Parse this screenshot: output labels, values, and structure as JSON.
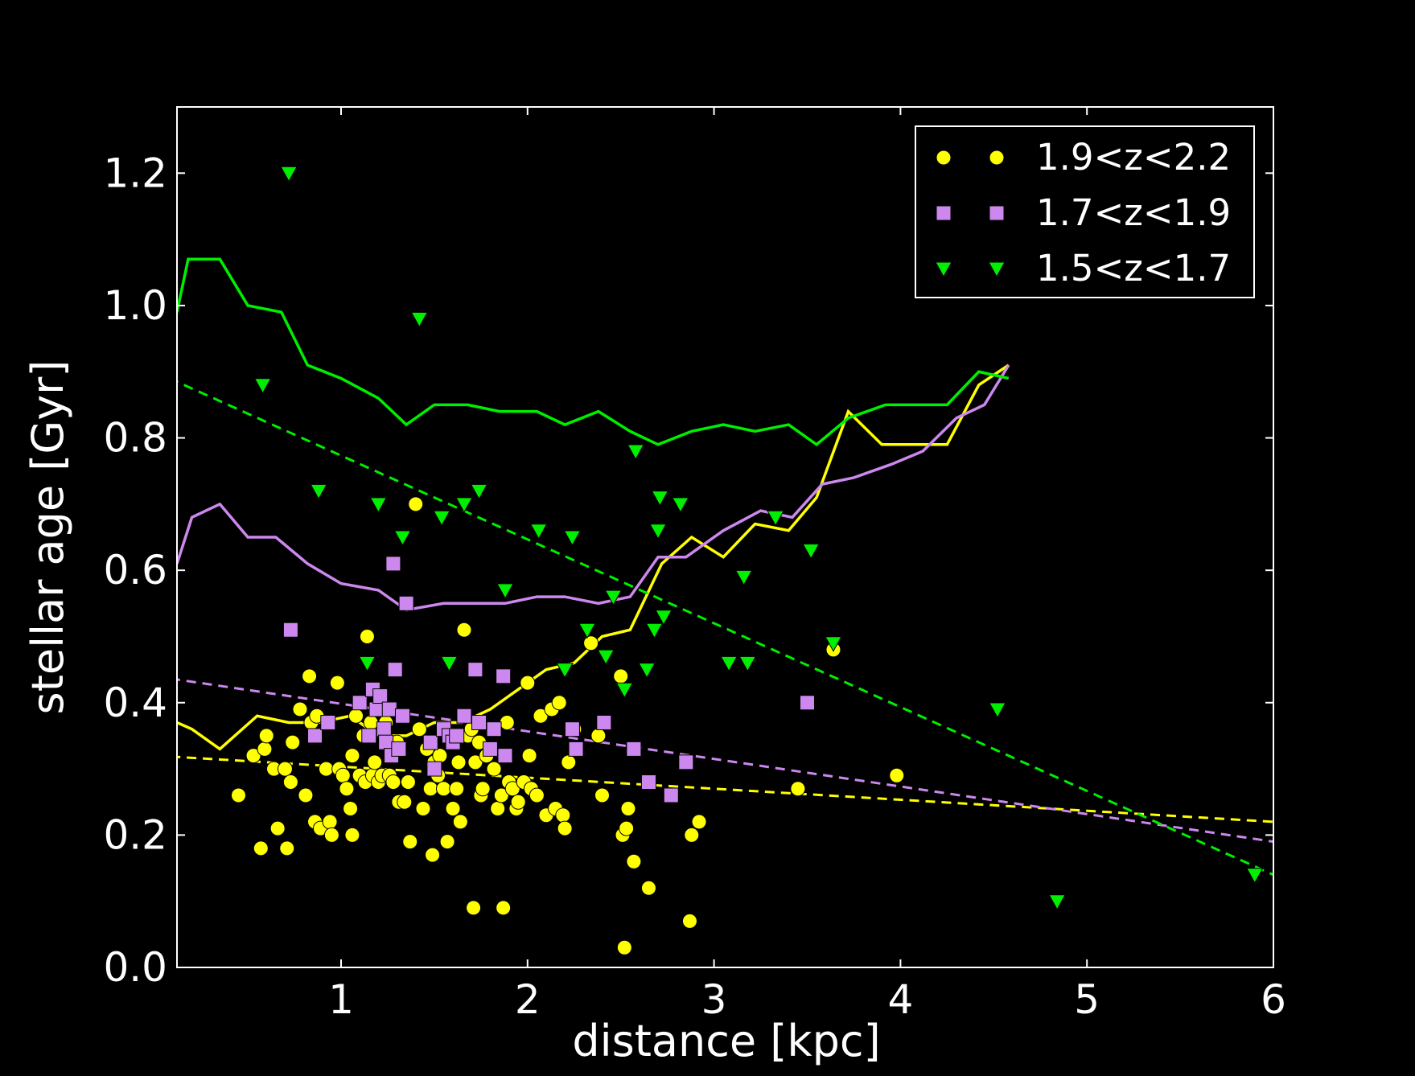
{
  "chart_data": {
    "type": "scatter",
    "xlabel": "distance [kpc]",
    "ylabel": "stellar age [Gyr]",
    "xlim": [
      0.12,
      6.0
    ],
    "ylim": [
      0.0,
      1.3
    ],
    "xticks": [
      1,
      2,
      3,
      4,
      5,
      6
    ],
    "yticks": [
      0.0,
      0.2,
      0.4,
      0.6,
      0.8,
      1.0,
      1.2
    ],
    "grid": false,
    "legend_position": "top-right",
    "colors": {
      "background": "#000000",
      "axes": "#ffffff",
      "yellow": "#ffff00",
      "violet": "#cc88ee",
      "green": "#00ee00"
    },
    "series": [
      {
        "name": "1.9<z<2.2",
        "color": "#ffff00",
        "marker": "circle",
        "points": [
          [
            0.45,
            0.26
          ],
          [
            0.53,
            0.32
          ],
          [
            0.57,
            0.18
          ],
          [
            0.59,
            0.33
          ],
          [
            0.6,
            0.35
          ],
          [
            0.64,
            0.3
          ],
          [
            0.66,
            0.21
          ],
          [
            0.7,
            0.3
          ],
          [
            0.71,
            0.18
          ],
          [
            0.73,
            0.28
          ],
          [
            0.74,
            0.34
          ],
          [
            0.78,
            0.39
          ],
          [
            0.81,
            0.26
          ],
          [
            0.83,
            0.44
          ],
          [
            0.84,
            0.37
          ],
          [
            0.86,
            0.22
          ],
          [
            0.87,
            0.38
          ],
          [
            0.89,
            0.21
          ],
          [
            0.92,
            0.3
          ],
          [
            0.94,
            0.22
          ],
          [
            0.95,
            0.2
          ],
          [
            0.98,
            0.43
          ],
          [
            0.99,
            0.3
          ],
          [
            1.01,
            0.29
          ],
          [
            1.03,
            0.27
          ],
          [
            1.05,
            0.24
          ],
          [
            1.06,
            0.2
          ],
          [
            1.06,
            0.32
          ],
          [
            1.08,
            0.38
          ],
          [
            1.1,
            0.29
          ],
          [
            1.12,
            0.35
          ],
          [
            1.13,
            0.28
          ],
          [
            1.14,
            0.5
          ],
          [
            1.16,
            0.37
          ],
          [
            1.17,
            0.29
          ],
          [
            1.18,
            0.31
          ],
          [
            1.2,
            0.28
          ],
          [
            1.22,
            0.29
          ],
          [
            1.24,
            0.37
          ],
          [
            1.26,
            0.29
          ],
          [
            1.28,
            0.28
          ],
          [
            1.3,
            0.34
          ],
          [
            1.31,
            0.25
          ],
          [
            1.33,
            0.38
          ],
          [
            1.34,
            0.25
          ],
          [
            1.36,
            0.28
          ],
          [
            1.37,
            0.19
          ],
          [
            1.4,
            0.7
          ],
          [
            1.42,
            0.36
          ],
          [
            1.44,
            0.24
          ],
          [
            1.46,
            0.33
          ],
          [
            1.48,
            0.27
          ],
          [
            1.49,
            0.17
          ],
          [
            1.5,
            0.31
          ],
          [
            1.52,
            0.29
          ],
          [
            1.53,
            0.32
          ],
          [
            1.55,
            0.27
          ],
          [
            1.57,
            0.19
          ],
          [
            1.58,
            0.35
          ],
          [
            1.6,
            0.24
          ],
          [
            1.62,
            0.27
          ],
          [
            1.63,
            0.31
          ],
          [
            1.64,
            0.22
          ],
          [
            1.66,
            0.51
          ],
          [
            1.68,
            0.35
          ],
          [
            1.7,
            0.36
          ],
          [
            1.71,
            0.09
          ],
          [
            1.72,
            0.31
          ],
          [
            1.74,
            0.34
          ],
          [
            1.75,
            0.26
          ],
          [
            1.76,
            0.27
          ],
          [
            1.78,
            0.32
          ],
          [
            1.82,
            0.3
          ],
          [
            1.84,
            0.24
          ],
          [
            1.86,
            0.26
          ],
          [
            1.87,
            0.09
          ],
          [
            1.89,
            0.37
          ],
          [
            1.9,
            0.28
          ],
          [
            1.92,
            0.27
          ],
          [
            1.94,
            0.24
          ],
          [
            1.95,
            0.25
          ],
          [
            1.98,
            0.28
          ],
          [
            2.0,
            0.43
          ],
          [
            2.01,
            0.32
          ],
          [
            2.02,
            0.27
          ],
          [
            2.05,
            0.26
          ],
          [
            2.07,
            0.38
          ],
          [
            2.1,
            0.23
          ],
          [
            2.13,
            0.39
          ],
          [
            2.15,
            0.24
          ],
          [
            2.17,
            0.4
          ],
          [
            2.19,
            0.23
          ],
          [
            2.2,
            0.21
          ],
          [
            2.22,
            0.31
          ],
          [
            2.25,
            0.36
          ],
          [
            2.34,
            0.49
          ],
          [
            2.38,
            0.35
          ],
          [
            2.4,
            0.26
          ],
          [
            2.5,
            0.44
          ],
          [
            2.51,
            0.2
          ],
          [
            2.52,
            0.03
          ],
          [
            2.53,
            0.21
          ],
          [
            2.54,
            0.24
          ],
          [
            2.57,
            0.16
          ],
          [
            2.65,
            0.12
          ],
          [
            2.87,
            0.07
          ],
          [
            2.88,
            0.2
          ],
          [
            2.92,
            0.22
          ],
          [
            3.45,
            0.27
          ],
          [
            3.64,
            0.48
          ],
          [
            3.98,
            0.29
          ]
        ],
        "trend_line": [
          [
            0.0,
            0.32
          ],
          [
            6.0,
            0.22
          ]
        ],
        "running_line": [
          [
            0.12,
            0.37
          ],
          [
            0.2,
            0.36
          ],
          [
            0.35,
            0.33
          ],
          [
            0.55,
            0.38
          ],
          [
            0.72,
            0.37
          ],
          [
            0.88,
            0.37
          ],
          [
            1.05,
            0.38
          ],
          [
            1.2,
            0.35
          ],
          [
            1.35,
            0.35
          ],
          [
            1.5,
            0.37
          ],
          [
            1.65,
            0.37
          ],
          [
            1.8,
            0.39
          ],
          [
            1.95,
            0.42
          ],
          [
            2.1,
            0.45
          ],
          [
            2.25,
            0.46
          ],
          [
            2.4,
            0.5
          ],
          [
            2.55,
            0.51
          ],
          [
            2.72,
            0.61
          ],
          [
            2.88,
            0.65
          ],
          [
            3.05,
            0.62
          ],
          [
            3.22,
            0.67
          ],
          [
            3.4,
            0.66
          ],
          [
            3.55,
            0.71
          ],
          [
            3.72,
            0.84
          ],
          [
            3.9,
            0.79
          ],
          [
            4.1,
            0.79
          ],
          [
            4.25,
            0.79
          ],
          [
            4.42,
            0.88
          ],
          [
            4.58,
            0.91
          ]
        ]
      },
      {
        "name": "1.7<z<1.9",
        "color": "#cc88ee",
        "marker": "square",
        "points": [
          [
            0.73,
            0.51
          ],
          [
            0.86,
            0.35
          ],
          [
            0.93,
            0.37
          ],
          [
            1.1,
            0.4
          ],
          [
            1.15,
            0.35
          ],
          [
            1.17,
            0.42
          ],
          [
            1.19,
            0.39
          ],
          [
            1.21,
            0.41
          ],
          [
            1.23,
            0.36
          ],
          [
            1.24,
            0.34
          ],
          [
            1.26,
            0.39
          ],
          [
            1.27,
            0.32
          ],
          [
            1.28,
            0.61
          ],
          [
            1.29,
            0.45
          ],
          [
            1.31,
            0.33
          ],
          [
            1.33,
            0.38
          ],
          [
            1.35,
            0.55
          ],
          [
            1.48,
            0.34
          ],
          [
            1.5,
            0.3
          ],
          [
            1.55,
            0.36
          ],
          [
            1.58,
            0.35
          ],
          [
            1.6,
            0.34
          ],
          [
            1.62,
            0.35
          ],
          [
            1.66,
            0.38
          ],
          [
            1.72,
            0.45
          ],
          [
            1.74,
            0.37
          ],
          [
            1.8,
            0.33
          ],
          [
            1.82,
            0.36
          ],
          [
            1.87,
            0.44
          ],
          [
            1.88,
            0.32
          ],
          [
            2.24,
            0.36
          ],
          [
            2.26,
            0.33
          ],
          [
            2.41,
            0.37
          ],
          [
            2.57,
            0.33
          ],
          [
            2.65,
            0.28
          ],
          [
            2.77,
            0.26
          ],
          [
            2.85,
            0.31
          ],
          [
            3.5,
            0.4
          ]
        ],
        "trend_line": [
          [
            0.0,
            0.44
          ],
          [
            6.0,
            0.19
          ]
        ],
        "running_line": [
          [
            0.12,
            0.61
          ],
          [
            0.2,
            0.68
          ],
          [
            0.35,
            0.7
          ],
          [
            0.5,
            0.65
          ],
          [
            0.65,
            0.65
          ],
          [
            0.82,
            0.61
          ],
          [
            1.0,
            0.58
          ],
          [
            1.2,
            0.57
          ],
          [
            1.35,
            0.54
          ],
          [
            1.55,
            0.55
          ],
          [
            1.75,
            0.55
          ],
          [
            1.88,
            0.55
          ],
          [
            2.05,
            0.56
          ],
          [
            2.2,
            0.56
          ],
          [
            2.38,
            0.55
          ],
          [
            2.55,
            0.56
          ],
          [
            2.7,
            0.62
          ],
          [
            2.85,
            0.62
          ],
          [
            3.05,
            0.66
          ],
          [
            3.25,
            0.69
          ],
          [
            3.42,
            0.68
          ],
          [
            3.58,
            0.73
          ],
          [
            3.75,
            0.74
          ],
          [
            3.95,
            0.76
          ],
          [
            4.12,
            0.78
          ],
          [
            4.3,
            0.83
          ],
          [
            4.45,
            0.85
          ],
          [
            4.58,
            0.91
          ]
        ]
      },
      {
        "name": "1.5<z<1.7",
        "color": "#00ee00",
        "marker": "triangle-down",
        "points": [
          [
            0.58,
            0.88
          ],
          [
            0.72,
            1.2
          ],
          [
            0.88,
            0.72
          ],
          [
            1.14,
            0.46
          ],
          [
            1.2,
            0.7
          ],
          [
            1.33,
            0.65
          ],
          [
            1.42,
            0.98
          ],
          [
            1.54,
            0.68
          ],
          [
            1.58,
            0.46
          ],
          [
            1.66,
            0.7
          ],
          [
            1.74,
            0.72
          ],
          [
            1.88,
            0.57
          ],
          [
            2.06,
            0.66
          ],
          [
            2.2,
            0.45
          ],
          [
            2.24,
            0.65
          ],
          [
            2.32,
            0.51
          ],
          [
            2.42,
            0.47
          ],
          [
            2.46,
            0.56
          ],
          [
            2.52,
            0.42
          ],
          [
            2.58,
            0.78
          ],
          [
            2.64,
            0.45
          ],
          [
            2.68,
            0.51
          ],
          [
            2.7,
            0.66
          ],
          [
            2.71,
            0.71
          ],
          [
            2.73,
            0.53
          ],
          [
            2.82,
            0.7
          ],
          [
            3.08,
            0.46
          ],
          [
            3.16,
            0.59
          ],
          [
            3.18,
            0.46
          ],
          [
            3.33,
            0.68
          ],
          [
            3.52,
            0.63
          ],
          [
            3.64,
            0.49
          ],
          [
            4.52,
            0.39
          ],
          [
            4.84,
            0.1
          ],
          [
            5.9,
            0.14
          ]
        ],
        "trend_line": [
          [
            0.0,
            0.9
          ],
          [
            6.0,
            0.14
          ]
        ],
        "running_line": [
          [
            0.12,
            0.99
          ],
          [
            0.18,
            1.07
          ],
          [
            0.35,
            1.07
          ],
          [
            0.5,
            1.0
          ],
          [
            0.68,
            0.99
          ],
          [
            0.82,
            0.91
          ],
          [
            1.0,
            0.89
          ],
          [
            1.2,
            0.86
          ],
          [
            1.35,
            0.82
          ],
          [
            1.5,
            0.85
          ],
          [
            1.68,
            0.85
          ],
          [
            1.85,
            0.84
          ],
          [
            2.05,
            0.84
          ],
          [
            2.2,
            0.82
          ],
          [
            2.38,
            0.84
          ],
          [
            2.55,
            0.81
          ],
          [
            2.7,
            0.79
          ],
          [
            2.88,
            0.81
          ],
          [
            3.05,
            0.82
          ],
          [
            3.22,
            0.81
          ],
          [
            3.4,
            0.82
          ],
          [
            3.55,
            0.79
          ],
          [
            3.72,
            0.83
          ],
          [
            3.92,
            0.85
          ],
          [
            4.08,
            0.85
          ],
          [
            4.25,
            0.85
          ],
          [
            4.42,
            0.9
          ],
          [
            4.58,
            0.89
          ]
        ]
      }
    ]
  }
}
